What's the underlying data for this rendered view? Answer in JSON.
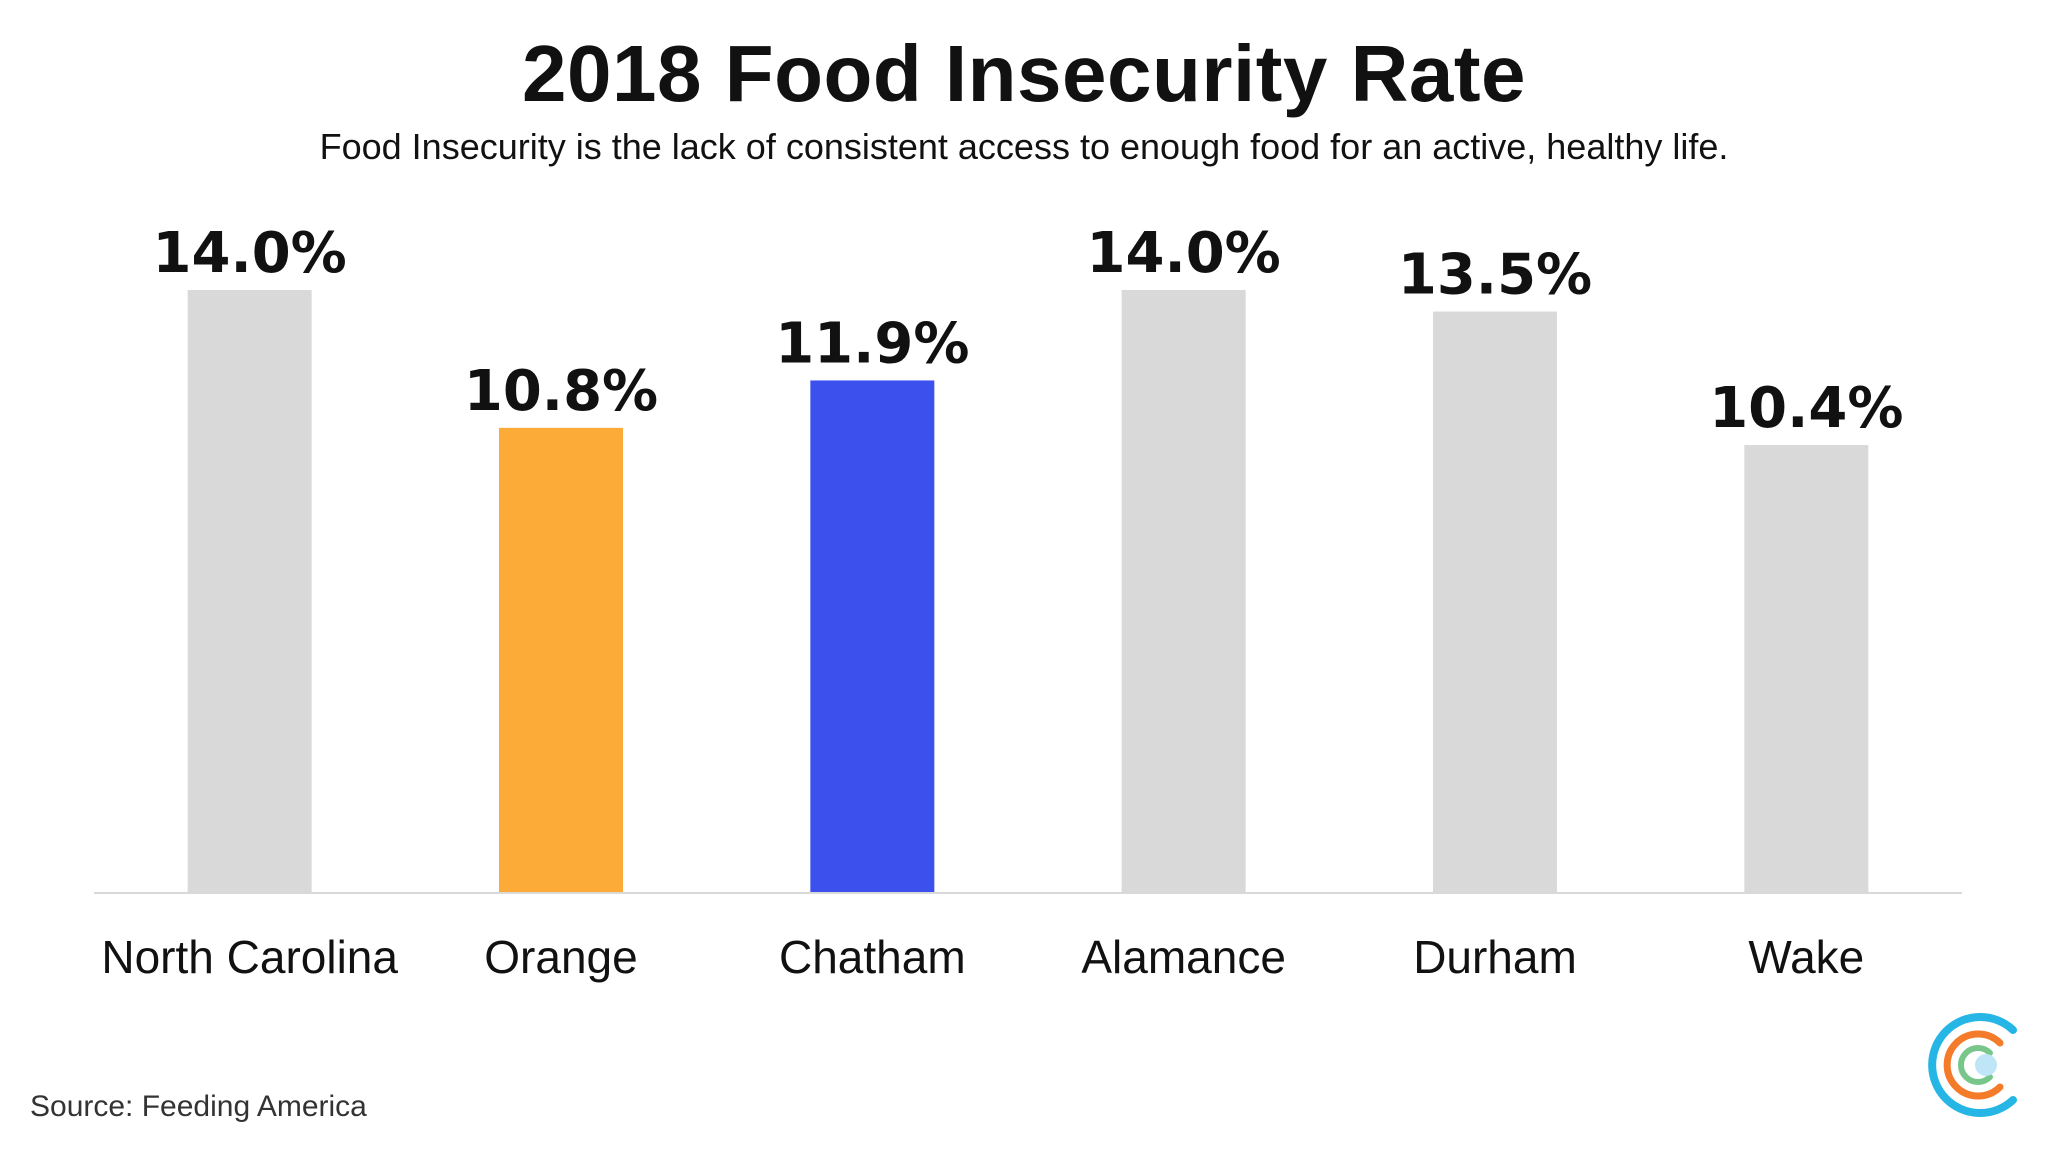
{
  "title": "2018 Food Insecurity Rate",
  "subtitle": "Food Insecurity is the lack of consistent access to enough food for an active, healthy life.",
  "source": "Source: Feeding America",
  "chart_data": {
    "type": "bar",
    "categories": [
      "North Carolina",
      "Orange",
      "Chatham",
      "Alamance",
      "Durham",
      "Wake"
    ],
    "values": [
      14.0,
      10.8,
      11.9,
      14.0,
      13.5,
      10.4
    ],
    "data_labels": [
      "14.0%",
      "10.8%",
      "11.9%",
      "14.0%",
      "13.5%",
      "10.4%"
    ],
    "colors": [
      "#d9d9d9",
      "#fdab38",
      "#3b50ec",
      "#d9d9d9",
      "#d9d9d9",
      "#d9d9d9"
    ],
    "ylim": [
      0,
      14.0
    ],
    "grid": false,
    "legend": "none"
  },
  "logo": {
    "name": "circular-logo",
    "colors": [
      "#26b6e6",
      "#f47b2a",
      "#78c68a",
      "#bfe6f7"
    ]
  }
}
